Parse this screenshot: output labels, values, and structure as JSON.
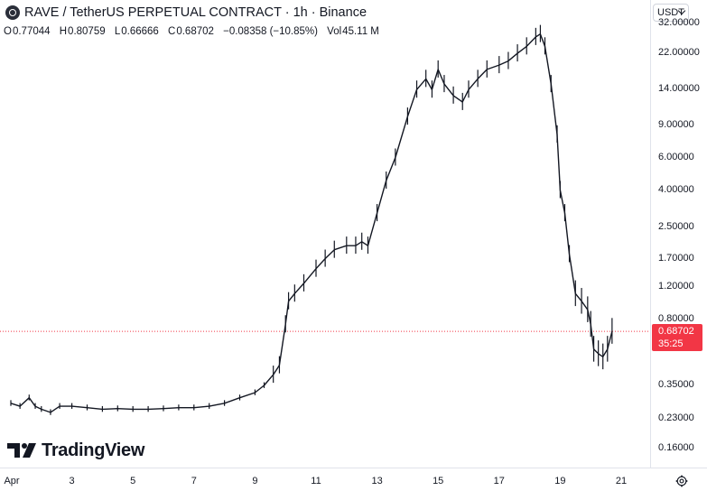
{
  "header": {
    "title": "RAVE / TetherUS PERPETUAL CONTRACT · 1h · Binance",
    "ohlc": {
      "o_label": "O",
      "o_value": "0.77044",
      "h_label": "H",
      "h_value": "0.80759",
      "l_label": "L",
      "l_value": "0.66666",
      "c_label": "C",
      "c_value": "0.68702",
      "change": "−0.08358 (−10.85%)",
      "vol_label": "Vol",
      "vol_value": "45.11 M"
    }
  },
  "axis": {
    "currency": "USDT",
    "y_ticks": [
      "32.00000",
      "22.00000",
      "14.00000",
      "9.00000",
      "6.00000",
      "4.00000",
      "2.50000",
      "1.70000",
      "1.20000",
      "0.80000",
      "0.35000",
      "0.23000",
      "0.16000"
    ],
    "x_ticks": [
      "Apr",
      "3",
      "5",
      "7",
      "9",
      "11",
      "13",
      "15",
      "17",
      "19",
      "21"
    ]
  },
  "last_price": {
    "price": "0.68702",
    "countdown": "35:25"
  },
  "branding": {
    "logo_text": "TradingView"
  },
  "colors": {
    "last_price": "#f23645",
    "candle": "#131722",
    "grid": "#e0e3eb"
  },
  "chart_data": {
    "type": "line",
    "y_scale": "log",
    "ylim": [
      0.13,
      40
    ],
    "x_unit": "day of April",
    "x": [
      1.0,
      1.3,
      1.6,
      1.8,
      2.0,
      2.3,
      2.6,
      3.0,
      3.5,
      4.0,
      4.5,
      5.0,
      5.5,
      6.0,
      6.5,
      7.0,
      7.5,
      8.0,
      8.5,
      9.0,
      9.3,
      9.6,
      9.8,
      10.0,
      10.1,
      10.3,
      10.6,
      11.0,
      11.3,
      11.6,
      12.0,
      12.3,
      12.5,
      12.7,
      13.0,
      13.3,
      13.6,
      14.0,
      14.3,
      14.6,
      14.8,
      15.0,
      15.2,
      15.5,
      15.8,
      16.0,
      16.3,
      16.6,
      17.0,
      17.3,
      17.6,
      17.9,
      18.2,
      18.35,
      18.5,
      18.7,
      18.9,
      19.0,
      19.15,
      19.3,
      19.5,
      19.7,
      19.9,
      20.0,
      20.1,
      20.25,
      20.4,
      20.55,
      20.7
    ],
    "values": [
      0.28,
      0.27,
      0.3,
      0.27,
      0.26,
      0.25,
      0.27,
      0.27,
      0.265,
      0.26,
      0.262,
      0.26,
      0.26,
      0.262,
      0.265,
      0.265,
      0.27,
      0.28,
      0.3,
      0.32,
      0.35,
      0.4,
      0.45,
      0.75,
      1.0,
      1.1,
      1.25,
      1.5,
      1.7,
      1.9,
      2.0,
      2.0,
      2.1,
      2.0,
      3.0,
      4.5,
      6.0,
      10.0,
      14.0,
      16.0,
      14.0,
      18.0,
      15.0,
      13.0,
      12.0,
      14.0,
      16.0,
      18.0,
      19.0,
      20.0,
      22.0,
      24.0,
      27.0,
      28.0,
      24.0,
      15.0,
      8.0,
      4.0,
      3.0,
      1.8,
      1.1,
      1.0,
      0.9,
      0.75,
      0.55,
      0.52,
      0.5,
      0.55,
      0.6875
    ]
  }
}
